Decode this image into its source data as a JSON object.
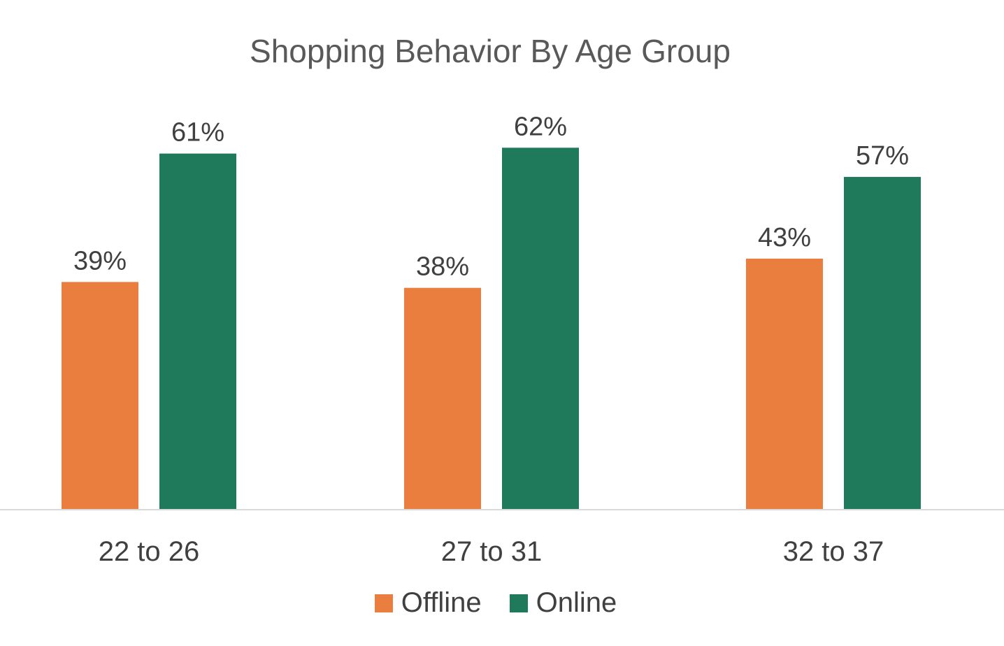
{
  "chart_data": {
    "type": "bar",
    "title": "Shopping Behavior By Age Group",
    "categories": [
      "22 to 26",
      "27 to 31",
      "32 to 37"
    ],
    "series": [
      {
        "name": "Offline",
        "color": "#E97E3F",
        "values": [
          39,
          38,
          43
        ],
        "labels": [
          "39%",
          "38%",
          "43%"
        ]
      },
      {
        "name": "Online",
        "color": "#1E7A5B",
        "values": [
          61,
          62,
          57
        ],
        "labels": [
          "61%",
          "62%",
          "57%"
        ]
      }
    ],
    "ylim": [
      0,
      64
    ],
    "grid": false,
    "legend_position": "bottom",
    "value_unit": "%"
  }
}
